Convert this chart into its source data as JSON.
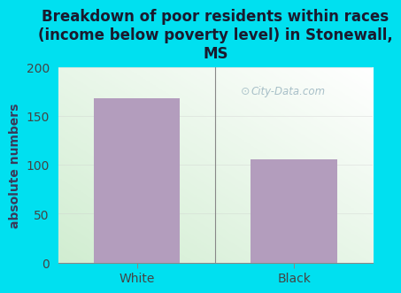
{
  "title": "Breakdown of poor residents within races\n(income below poverty level) in Stonewall,\nMS",
  "categories": [
    "White",
    "Black"
  ],
  "values": [
    168,
    106
  ],
  "bar_color": "#b39dbd",
  "ylabel": "absolute numbers",
  "ylim": [
    0,
    200
  ],
  "yticks": [
    0,
    50,
    100,
    150,
    200
  ],
  "title_fontsize": 12,
  "label_fontsize": 10,
  "tick_fontsize": 10,
  "title_color": "#1a1a2e",
  "outer_bg_color": "#00e0f0",
  "ylabel_color": "#3a3a5a",
  "watermark_text": "City-Data.com",
  "bar_width": 0.55
}
